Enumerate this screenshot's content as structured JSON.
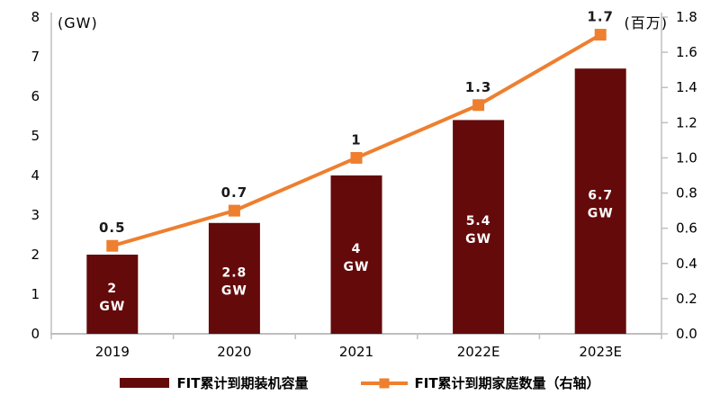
{
  "chart_data": {
    "type": "bar+line",
    "title": "",
    "categories": [
      "2019",
      "2020",
      "2021",
      "2022E",
      "2023E"
    ],
    "series": [
      {
        "name": "FIT累计到期装机容量",
        "type": "bar",
        "axis": "left",
        "values": [
          2,
          2.8,
          4,
          5.4,
          6.7
        ],
        "data_labels": [
          "2",
          "2.8",
          "4",
          "5.4",
          "6.7"
        ],
        "data_label_unit": "GW"
      },
      {
        "name": "FIT累计到期家庭数量（右轴）",
        "type": "line",
        "axis": "right",
        "values": [
          0.5,
          0.7,
          1,
          1.3,
          1.7
        ],
        "data_labels": [
          "0.5",
          "0.7",
          "1",
          "1.3",
          "1.7"
        ]
      }
    ],
    "left_axis": {
      "title": "(GW)",
      "min": 0,
      "max": 8,
      "step": 1,
      "ticks": [
        "0",
        "1",
        "2",
        "3",
        "4",
        "5",
        "6",
        "7",
        "8"
      ]
    },
    "right_axis": {
      "title": "(百万)",
      "min": 0,
      "max": 1.8,
      "step": 0.2,
      "ticks": [
        "0.0",
        "0.2",
        "0.4",
        "0.6",
        "0.8",
        "1.0",
        "1.2",
        "1.4",
        "1.6",
        "1.8"
      ]
    },
    "grid": false,
    "legend_position": "bottom"
  },
  "colors": {
    "bar": "#640A0A",
    "line": "#EE7F2F",
    "axis_line": "#BFBFBF",
    "tick_text": "#000000",
    "data_label_text": "#1A1A1A",
    "bar_label_text": "#FFFFFF",
    "background": "#FFFFFF"
  }
}
